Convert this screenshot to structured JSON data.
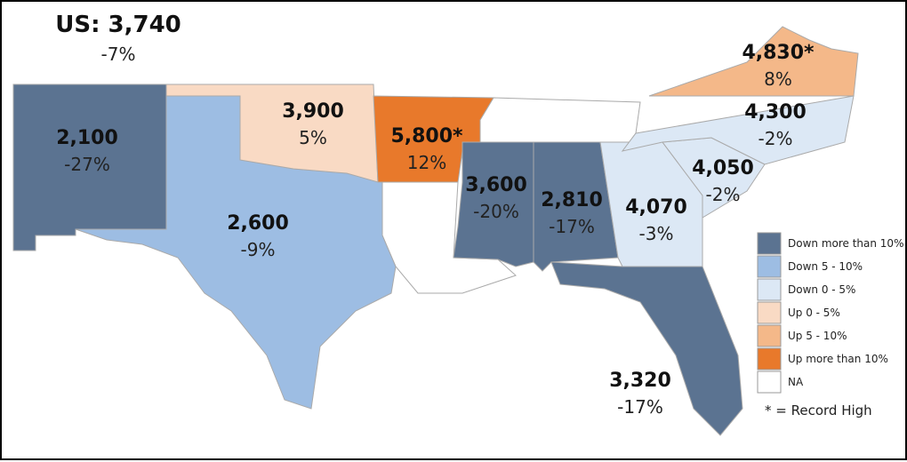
{
  "header": {
    "title": "US: 3,740",
    "change": "-7%"
  },
  "states": [
    {
      "value": "2,100",
      "change": "-27%",
      "color": "#5b7391"
    },
    {
      "value": "2,600",
      "change": "-9%",
      "color": "#9dbde3"
    },
    {
      "value": "3,900",
      "change": "5%",
      "color": "#f9dac4"
    },
    {
      "value": "5,800*",
      "change": "12%",
      "color": "#e8792b"
    },
    {
      "value": "3,600",
      "change": "-20%",
      "color": "#5b7391"
    },
    {
      "value": "2,810",
      "change": "-17%",
      "color": "#5b7391"
    },
    {
      "value": "4,070",
      "change": "-3%",
      "color": "#dce8f5"
    },
    {
      "value": "4,050",
      "change": "-2%",
      "color": "#dce8f5"
    },
    {
      "value": "4,300",
      "change": "-2%",
      "color": "#dce8f5"
    },
    {
      "value": "4,830*",
      "change": "8%",
      "color": "#f4b889"
    },
    {
      "value": "3,320",
      "change": "-17%",
      "color": "#5b7391"
    }
  ],
  "legend": [
    {
      "label": "Down more than 10%",
      "color": "#5b7391"
    },
    {
      "label": "Down 5 - 10%",
      "color": "#9dbde3"
    },
    {
      "label": "Down 0 - 5%",
      "color": "#dce8f5"
    },
    {
      "label": "Up 0 - 5%",
      "color": "#f9dac4"
    },
    {
      "label": "Up 5 - 10%",
      "color": "#f4b889"
    },
    {
      "label": "Up more than 10%",
      "color": "#e8792b"
    },
    {
      "label": "NA",
      "color": "#ffffff"
    }
  ],
  "footnote": "* = Record High"
}
